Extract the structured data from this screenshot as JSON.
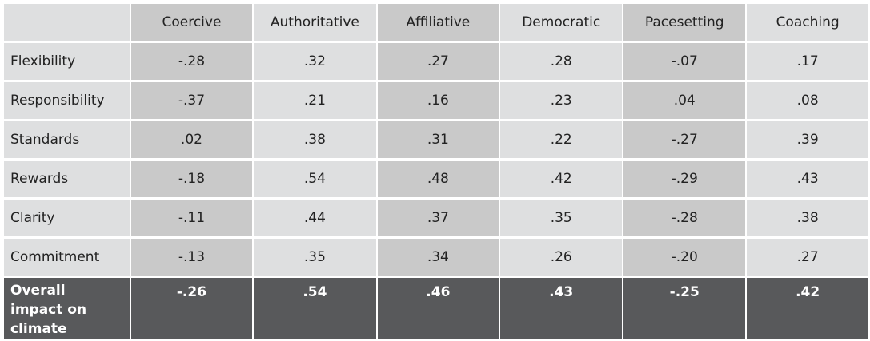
{
  "table": {
    "header": [
      "Coercive",
      "Authoritative",
      "Affiliative",
      "Democratic",
      "Pacesetting",
      "Coaching"
    ],
    "rows": [
      {
        "label": "Flexibility",
        "values": [
          "-.28",
          ".32",
          ".27",
          ".28",
          "-.07",
          ".17"
        ]
      },
      {
        "label": "Responsibility",
        "values": [
          "-.37",
          ".21",
          ".16",
          ".23",
          ".04",
          ".08"
        ]
      },
      {
        "label": "Standards",
        "values": [
          ".02",
          ".38",
          ".31",
          ".22",
          "-.27",
          ".39"
        ]
      },
      {
        "label": "Rewards",
        "values": [
          "-.18",
          ".54",
          ".48",
          ".42",
          "-.29",
          ".43"
        ]
      },
      {
        "label": "Clarity",
        "values": [
          "-.11",
          ".44",
          ".37",
          ".35",
          "-.28",
          ".38"
        ]
      },
      {
        "label": "Commitment",
        "values": [
          "-.13",
          ".35",
          ".34",
          ".26",
          "-.20",
          ".27"
        ]
      }
    ],
    "footer": {
      "label": "Overall impact on climate",
      "values": [
        "-.26",
        ".54",
        ".46",
        ".43",
        "-.25",
        ".42"
      ]
    }
  }
}
